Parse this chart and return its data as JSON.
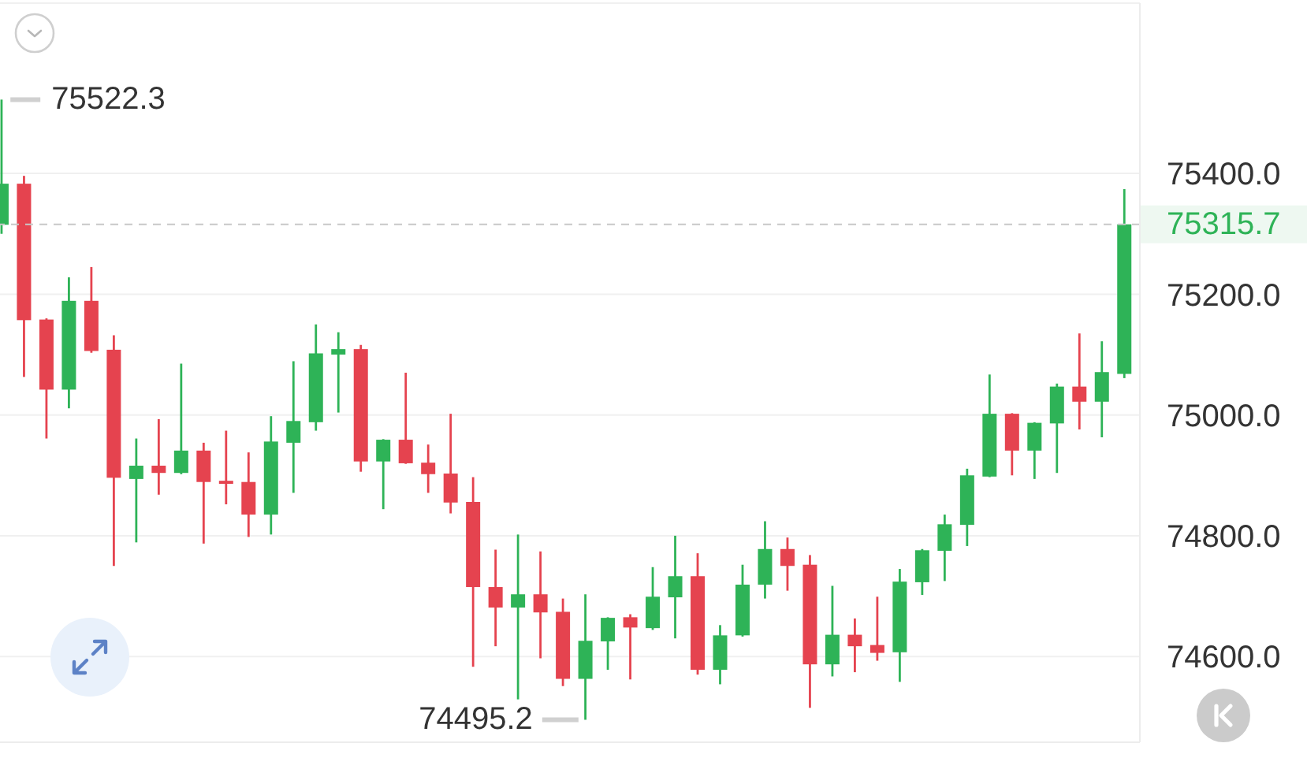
{
  "chart_data": {
    "type": "candlestick",
    "categories": [
      null,
      null,
      null,
      null,
      null,
      null,
      null,
      null,
      null,
      null,
      null,
      null,
      null,
      null,
      null,
      null,
      null,
      null,
      null,
      null,
      null,
      null,
      null,
      null,
      null,
      null,
      null,
      null,
      null,
      null,
      null,
      null,
      null,
      null,
      null,
      null,
      null,
      null,
      null,
      null,
      null,
      null,
      null,
      null,
      null,
      null,
      null,
      null,
      null,
      null,
      null
    ],
    "ohlc": [
      [
        75315,
        75522.3,
        75300,
        75383
      ],
      [
        75383,
        75396,
        75063,
        75157
      ],
      [
        75158,
        75160,
        74961,
        75042
      ],
      [
        75042,
        75228,
        75011,
        75189
      ],
      [
        75189,
        75245,
        75103,
        75106
      ],
      [
        75108,
        75132,
        74750,
        74896
      ],
      [
        74894,
        74961,
        74789,
        74916
      ],
      [
        74916,
        74993,
        74868,
        74904
      ],
      [
        74904,
        75085,
        74902,
        74941
      ],
      [
        74941,
        74954,
        74787,
        74889
      ],
      [
        74891,
        74974,
        74852,
        74886
      ],
      [
        74889,
        74938,
        74798,
        74835
      ],
      [
        74835,
        74998,
        74802,
        74956
      ],
      [
        74954,
        75089,
        74871,
        74990
      ],
      [
        74988,
        75150,
        74974,
        75102
      ],
      [
        75100,
        75137,
        75004,
        75109
      ],
      [
        75109,
        75116,
        74906,
        74923
      ],
      [
        74923,
        74960,
        74844,
        74959
      ],
      [
        74959,
        75070,
        74919,
        74920
      ],
      [
        74921,
        74951,
        74871,
        74902
      ],
      [
        74903,
        75002,
        74837,
        74855
      ],
      [
        74856,
        74897,
        74583,
        74715
      ],
      [
        74715,
        74777,
        74617,
        74681
      ],
      [
        74681,
        74802,
        74529,
        74703
      ],
      [
        74703,
        74774,
        74597,
        74673
      ],
      [
        74674,
        74696,
        74551,
        74563
      ],
      [
        74563,
        74703,
        74495.2,
        74626
      ],
      [
        74625,
        74665,
        74578,
        74664
      ],
      [
        74665,
        74670,
        74562,
        74648
      ],
      [
        74647,
        74748,
        74644,
        74699
      ],
      [
        74698,
        74800,
        74630,
        74733
      ],
      [
        74733,
        74771,
        74570,
        74578
      ],
      [
        74578,
        74652,
        74554,
        74635
      ],
      [
        74635,
        74752,
        74633,
        74719
      ],
      [
        74719,
        74824,
        74696,
        74778
      ],
      [
        74778,
        74797,
        74709,
        74750
      ],
      [
        74752,
        74768,
        74515,
        74587
      ],
      [
        74587,
        74717,
        74567,
        74636
      ],
      [
        74636,
        74663,
        74574,
        74617
      ],
      [
        74619,
        74699,
        74593,
        74606
      ],
      [
        74607,
        74745,
        74558,
        74724
      ],
      [
        74723,
        74778,
        74702,
        74776
      ],
      [
        74775,
        74835,
        74725,
        74819
      ],
      [
        74818,
        74911,
        74783,
        74900
      ],
      [
        74898,
        75067,
        74897,
        75002
      ],
      [
        75002,
        75003,
        74900,
        74941
      ],
      [
        74941,
        74988,
        74894,
        74987
      ],
      [
        74986,
        75052,
        74904,
        75047
      ],
      [
        75047,
        75135,
        74976,
        75022
      ],
      [
        75022,
        75122,
        74963,
        75071
      ],
      [
        75068,
        75374,
        75061,
        75315.7
      ]
    ],
    "colors": [
      "#2eb357",
      "#e5434f",
      "#e5434f",
      "#2eb357",
      "#e5434f",
      "#e5434f",
      "#2eb357",
      "#e5434f",
      "#2eb357",
      "#e5434f",
      "#e5434f",
      "#e5434f",
      "#2eb357",
      "#2eb357",
      "#2eb357",
      "#2eb357",
      "#e5434f",
      "#2eb357",
      "#e5434f",
      "#e5434f",
      "#e5434f",
      "#e5434f",
      "#e5434f",
      "#2eb357",
      "#e5434f",
      "#e5434f",
      "#2eb357",
      "#2eb357",
      "#e5434f",
      "#2eb357",
      "#2eb357",
      "#e5434f",
      "#2eb357",
      "#2eb357",
      "#2eb357",
      "#e5434f",
      "#e5434f",
      "#2eb357",
      "#e5434f",
      "#e5434f",
      "#2eb357",
      "#2eb357",
      "#2eb357",
      "#2eb357",
      "#2eb357",
      "#e5434f",
      "#2eb357",
      "#2eb357",
      "#e5434f",
      "#2eb357",
      "#2eb357"
    ],
    "ylim": [
      74458,
      75682
    ],
    "yticks": [
      {
        "value": 74600,
        "label": "74600.0"
      },
      {
        "value": 74800,
        "label": "74800.0"
      },
      {
        "value": 75000,
        "label": "75000.0"
      },
      {
        "value": 75200,
        "label": "75200.0"
      },
      {
        "value": 75400,
        "label": "75400.0"
      }
    ],
    "grid": "y",
    "tick_labels": "y",
    "ref_lines": [
      {
        "axis": "y",
        "value": 75315.7,
        "label": "75315.7",
        "color": "#c8c8c8",
        "line_style": "dashed"
      }
    ],
    "annotations": [
      "75522.3",
      "74495.2"
    ]
  }
}
